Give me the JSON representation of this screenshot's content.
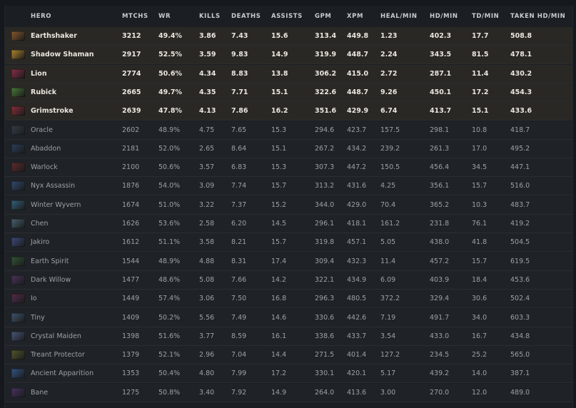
{
  "headers": [
    "HERO",
    "MTCHS",
    "WR",
    "KILLS",
    "DEATHS",
    "ASSISTS",
    "GPM",
    "XPM",
    "HEAL/MIN",
    "HD/MIN",
    "TD/MIN",
    "TAKEN HD/MIN"
  ],
  "highlight_color": "#2a2824",
  "rows": [
    {
      "icon": "earthshaker-portrait-icon",
      "color": "#8a5a2e",
      "highlight": true,
      "cells": [
        "Earthshaker",
        "3212",
        "49.4%",
        "3.86",
        "7.43",
        "15.6",
        "313.4",
        "449.8",
        "1.23",
        "402.3",
        "17.7",
        "508.8"
      ]
    },
    {
      "icon": "shadow-shaman-portrait-icon",
      "color": "#b0862e",
      "highlight": true,
      "cells": [
        "Shadow Shaman",
        "2917",
        "52.5%",
        "3.59",
        "9.83",
        "14.9",
        "319.9",
        "448.7",
        "2.24",
        "343.5",
        "81.5",
        "478.1"
      ]
    },
    {
      "icon": "lion-portrait-icon",
      "color": "#8a2e4a",
      "highlight": true,
      "cells": [
        "Lion",
        "2774",
        "50.6%",
        "4.34",
        "8.83",
        "13.8",
        "306.2",
        "415.0",
        "2.72",
        "287.1",
        "11.4",
        "430.2"
      ]
    },
    {
      "icon": "rubick-portrait-icon",
      "color": "#4a7a3a",
      "highlight": true,
      "cells": [
        "Rubick",
        "2665",
        "49.7%",
        "4.35",
        "7.71",
        "15.1",
        "322.6",
        "448.7",
        "9.26",
        "450.1",
        "17.2",
        "454.3"
      ]
    },
    {
      "icon": "grimstroke-portrait-icon",
      "color": "#8a2e3a",
      "highlight": true,
      "cells": [
        "Grimstroke",
        "2639",
        "47.8%",
        "4.13",
        "7.86",
        "16.2",
        "351.6",
        "429.9",
        "6.74",
        "413.7",
        "15.1",
        "433.6"
      ]
    },
    {
      "icon": "oracle-portrait-icon",
      "color": "#3a4a5a",
      "highlight": false,
      "cells": [
        "Oracle",
        "2602",
        "48.9%",
        "4.75",
        "7.65",
        "15.3",
        "294.6",
        "423.7",
        "157.5",
        "298.1",
        "10.8",
        "418.7"
      ]
    },
    {
      "icon": "abaddon-portrait-icon",
      "color": "#2e4a6a",
      "highlight": false,
      "cells": [
        "Abaddon",
        "2181",
        "52.0%",
        "2.65",
        "8.64",
        "15.1",
        "267.2",
        "434.2",
        "239.2",
        "261.3",
        "17.0",
        "495.2"
      ]
    },
    {
      "icon": "warlock-portrait-icon",
      "color": "#7a2e2e",
      "highlight": false,
      "cells": [
        "Warlock",
        "2100",
        "50.6%",
        "3.57",
        "6.83",
        "15.3",
        "307.3",
        "447.2",
        "150.5",
        "456.4",
        "34.5",
        "447.1"
      ]
    },
    {
      "icon": "nyx-assassin-portrait-icon",
      "color": "#3a5a8a",
      "highlight": false,
      "cells": [
        "Nyx Assassin",
        "1876",
        "54.0%",
        "3.09",
        "7.74",
        "15.7",
        "313.2",
        "431.6",
        "4.25",
        "356.1",
        "15.7",
        "516.0"
      ]
    },
    {
      "icon": "winter-wyvern-portrait-icon",
      "color": "#3a7a9a",
      "highlight": false,
      "cells": [
        "Winter Wyvern",
        "1674",
        "51.0%",
        "3.22",
        "7.37",
        "15.2",
        "344.0",
        "429.0",
        "70.4",
        "365.2",
        "10.3",
        "483.7"
      ]
    },
    {
      "icon": "chen-portrait-icon",
      "color": "#5a7a8a",
      "highlight": false,
      "cells": [
        "Chen",
        "1626",
        "53.6%",
        "2.58",
        "6.20",
        "14.5",
        "296.1",
        "418.1",
        "161.2",
        "231.8",
        "76.1",
        "419.2"
      ]
    },
    {
      "icon": "jakiro-portrait-icon",
      "color": "#4a5a9a",
      "highlight": false,
      "cells": [
        "Jakiro",
        "1612",
        "51.1%",
        "3.58",
        "8.21",
        "15.7",
        "319.8",
        "457.1",
        "5.05",
        "438.0",
        "41.8",
        "504.5"
      ]
    },
    {
      "icon": "earth-spirit-portrait-icon",
      "color": "#3a6a3a",
      "highlight": false,
      "cells": [
        "Earth Spirit",
        "1544",
        "48.9%",
        "4.88",
        "8.31",
        "17.4",
        "309.4",
        "432.3",
        "11.4",
        "457.2",
        "15.7",
        "619.5"
      ]
    },
    {
      "icon": "dark-willow-portrait-icon",
      "color": "#5a3a6a",
      "highlight": false,
      "cells": [
        "Dark Willow",
        "1477",
        "48.6%",
        "5.08",
        "7.66",
        "14.2",
        "322.1",
        "434.9",
        "6.09",
        "403.9",
        "18.4",
        "453.6"
      ]
    },
    {
      "icon": "io-portrait-icon",
      "color": "#6a2e5a",
      "highlight": false,
      "cells": [
        "Io",
        "1449",
        "57.4%",
        "3.06",
        "7.50",
        "16.8",
        "296.3",
        "480.5",
        "372.2",
        "329.4",
        "30.6",
        "502.4"
      ]
    },
    {
      "icon": "tiny-portrait-icon",
      "color": "#4a6a8a",
      "highlight": false,
      "cells": [
        "Tiny",
        "1409",
        "50.2%",
        "5.56",
        "7.49",
        "14.6",
        "330.6",
        "442.6",
        "7.19",
        "491.7",
        "34.0",
        "603.3"
      ]
    },
    {
      "icon": "crystal-maiden-portrait-icon",
      "color": "#5a6a9a",
      "highlight": false,
      "cells": [
        "Crystal Maiden",
        "1398",
        "51.6%",
        "3.77",
        "8.59",
        "16.1",
        "338.6",
        "433.7",
        "3.54",
        "433.0",
        "16.7",
        "434.8"
      ]
    },
    {
      "icon": "treant-protector-portrait-icon",
      "color": "#6a6a2e",
      "highlight": false,
      "cells": [
        "Treant Protector",
        "1379",
        "52.1%",
        "2.96",
        "7.04",
        "14.4",
        "271.5",
        "401.4",
        "127.2",
        "234.5",
        "25.2",
        "565.0"
      ]
    },
    {
      "icon": "ancient-apparition-portrait-icon",
      "color": "#3a6aaa",
      "highlight": false,
      "cells": [
        "Ancient Apparition",
        "1353",
        "50.4%",
        "4.80",
        "7.99",
        "17.2",
        "330.1",
        "420.1",
        "5.17",
        "439.2",
        "14.0",
        "387.1"
      ]
    },
    {
      "icon": "bane-portrait-icon",
      "color": "#5a3a7a",
      "highlight": false,
      "cells": [
        "Bane",
        "1275",
        "50.8%",
        "3.40",
        "7.92",
        "14.9",
        "264.0",
        "413.6",
        "3.00",
        "270.0",
        "12.0",
        "489.0"
      ]
    }
  ]
}
